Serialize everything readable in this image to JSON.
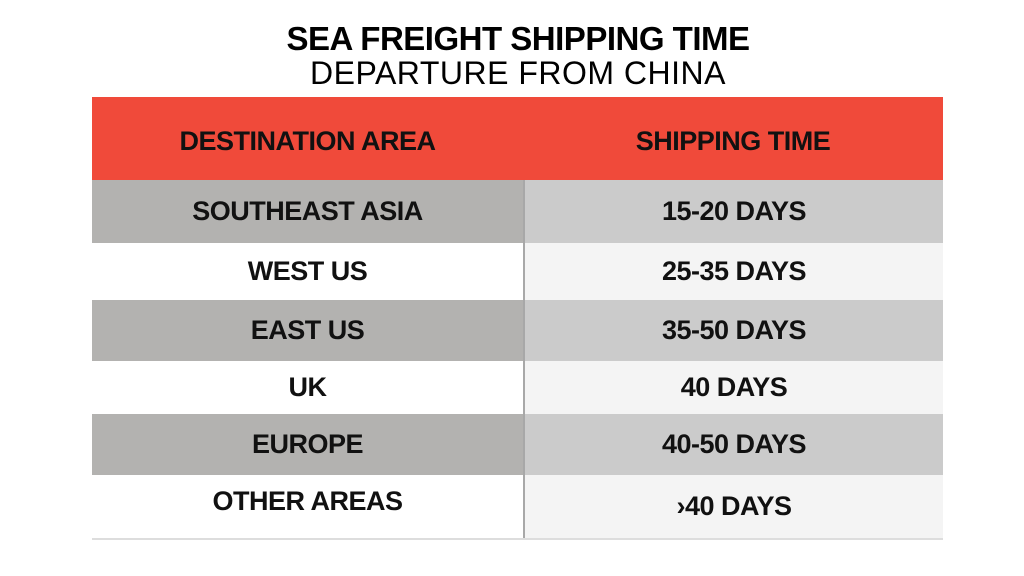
{
  "title": "SEA FREIGHT SHIPPING TIME",
  "subtitle": "DEPARTURE FROM CHINA",
  "colors": {
    "header": "#f04a3a",
    "row_dark_left": "#b3b2b0",
    "row_dark_right": "#cbcbcb",
    "row_light_right": "#f4f4f4"
  },
  "table": {
    "headers": [
      "DESTINATION AREA",
      "SHIPPING TIME"
    ],
    "rows": [
      [
        "SOUTHEAST ASIA",
        "15-20 DAYS"
      ],
      [
        "WEST US",
        "25-35 DAYS"
      ],
      [
        "EAST US",
        "35-50 DAYS"
      ],
      [
        "UK",
        "40 DAYS"
      ],
      [
        "EUROPE",
        "40-50 DAYS"
      ],
      [
        "OTHER AREAS",
        "›40 DAYS"
      ]
    ]
  }
}
